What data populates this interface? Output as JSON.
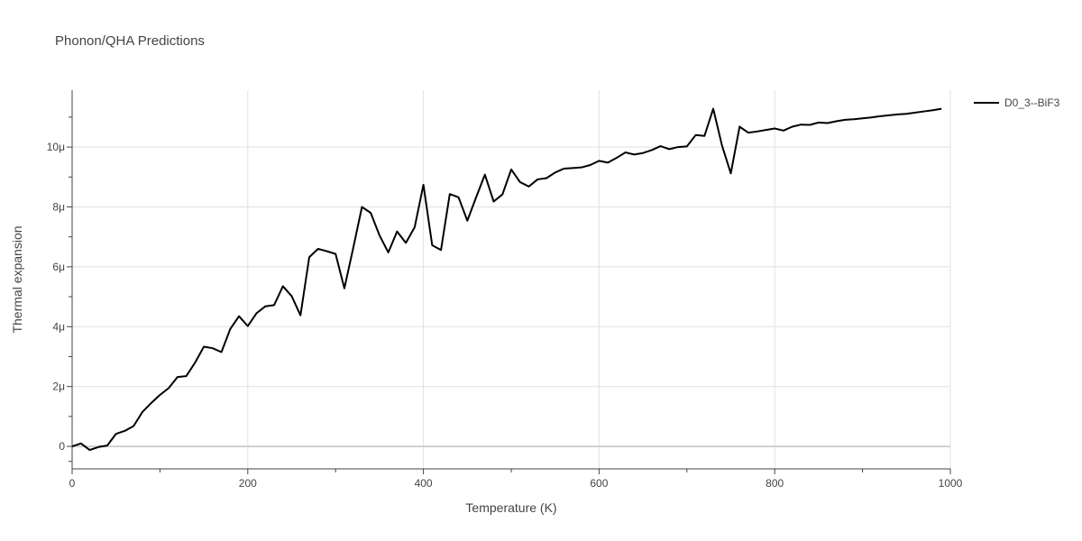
{
  "chart_data": {
    "type": "line",
    "title": "Phonon/QHA Predictions",
    "xlabel": "Temperature (K)",
    "ylabel": "Thermal expansion",
    "xlim": [
      0,
      1000
    ],
    "ylim": [
      -0.75,
      11.9
    ],
    "y_unit_scale": "µ (×1e-6)",
    "x_ticks": [
      0,
      200,
      400,
      600,
      800,
      1000
    ],
    "x_tick_labels": [
      "0",
      "200",
      "400",
      "600",
      "800",
      "1000"
    ],
    "y_ticks": [
      0,
      2,
      4,
      6,
      8,
      10
    ],
    "y_tick_labels": [
      "0",
      "2μ",
      "4μ",
      "6μ",
      "8μ",
      "10μ"
    ],
    "grid": true,
    "legend_position": "top-right",
    "series": [
      {
        "name": "D0_3--BiF3",
        "color": "#000000",
        "x": [
          0,
          10,
          20,
          30,
          40,
          50,
          60,
          70,
          80,
          90,
          100,
          110,
          120,
          130,
          140,
          150,
          160,
          170,
          180,
          190,
          200,
          210,
          220,
          230,
          240,
          250,
          260,
          270,
          280,
          290,
          300,
          310,
          320,
          330,
          340,
          350,
          360,
          370,
          380,
          390,
          400,
          410,
          420,
          430,
          440,
          450,
          460,
          470,
          480,
          490,
          500,
          510,
          520,
          530,
          540,
          550,
          560,
          570,
          580,
          590,
          600,
          610,
          620,
          630,
          640,
          650,
          660,
          670,
          680,
          690,
          700,
          710,
          720,
          730,
          740,
          750,
          760,
          770,
          780,
          790,
          800,
          810,
          820,
          830,
          840,
          850,
          860,
          870,
          880,
          890,
          900,
          910,
          920,
          930,
          940,
          950,
          960,
          970,
          980,
          990
        ],
        "y": [
          0,
          0.1,
          -0.12,
          -0.02,
          0.03,
          0.42,
          0.52,
          0.68,
          1.15,
          1.45,
          1.72,
          1.95,
          2.32,
          2.35,
          2.8,
          3.33,
          3.28,
          3.15,
          3.92,
          4.35,
          4.02,
          4.45,
          4.68,
          4.72,
          5.35,
          5.02,
          4.38,
          6.32,
          6.6,
          6.52,
          6.43,
          5.28,
          6.62,
          8.0,
          7.8,
          7.05,
          6.48,
          7.18,
          6.8,
          7.32,
          8.74,
          6.72,
          6.56,
          8.43,
          8.32,
          7.54,
          8.32,
          9.08,
          8.18,
          8.42,
          9.25,
          8.83,
          8.68,
          8.92,
          8.96,
          9.15,
          9.28,
          9.3,
          9.32,
          9.4,
          9.54,
          9.48,
          9.64,
          9.82,
          9.75,
          9.8,
          9.9,
          10.03,
          9.93,
          10.0,
          10.02,
          10.4,
          10.37,
          11.28,
          10.05,
          9.12,
          10.68,
          10.48,
          10.52,
          10.57,
          10.62,
          10.55,
          10.68,
          10.75,
          10.74,
          10.82,
          10.8,
          10.86,
          10.91,
          10.93,
          10.96,
          10.99,
          11.03,
          11.06,
          11.09,
          11.11,
          11.15,
          11.19,
          11.23,
          11.28
        ]
      }
    ]
  }
}
